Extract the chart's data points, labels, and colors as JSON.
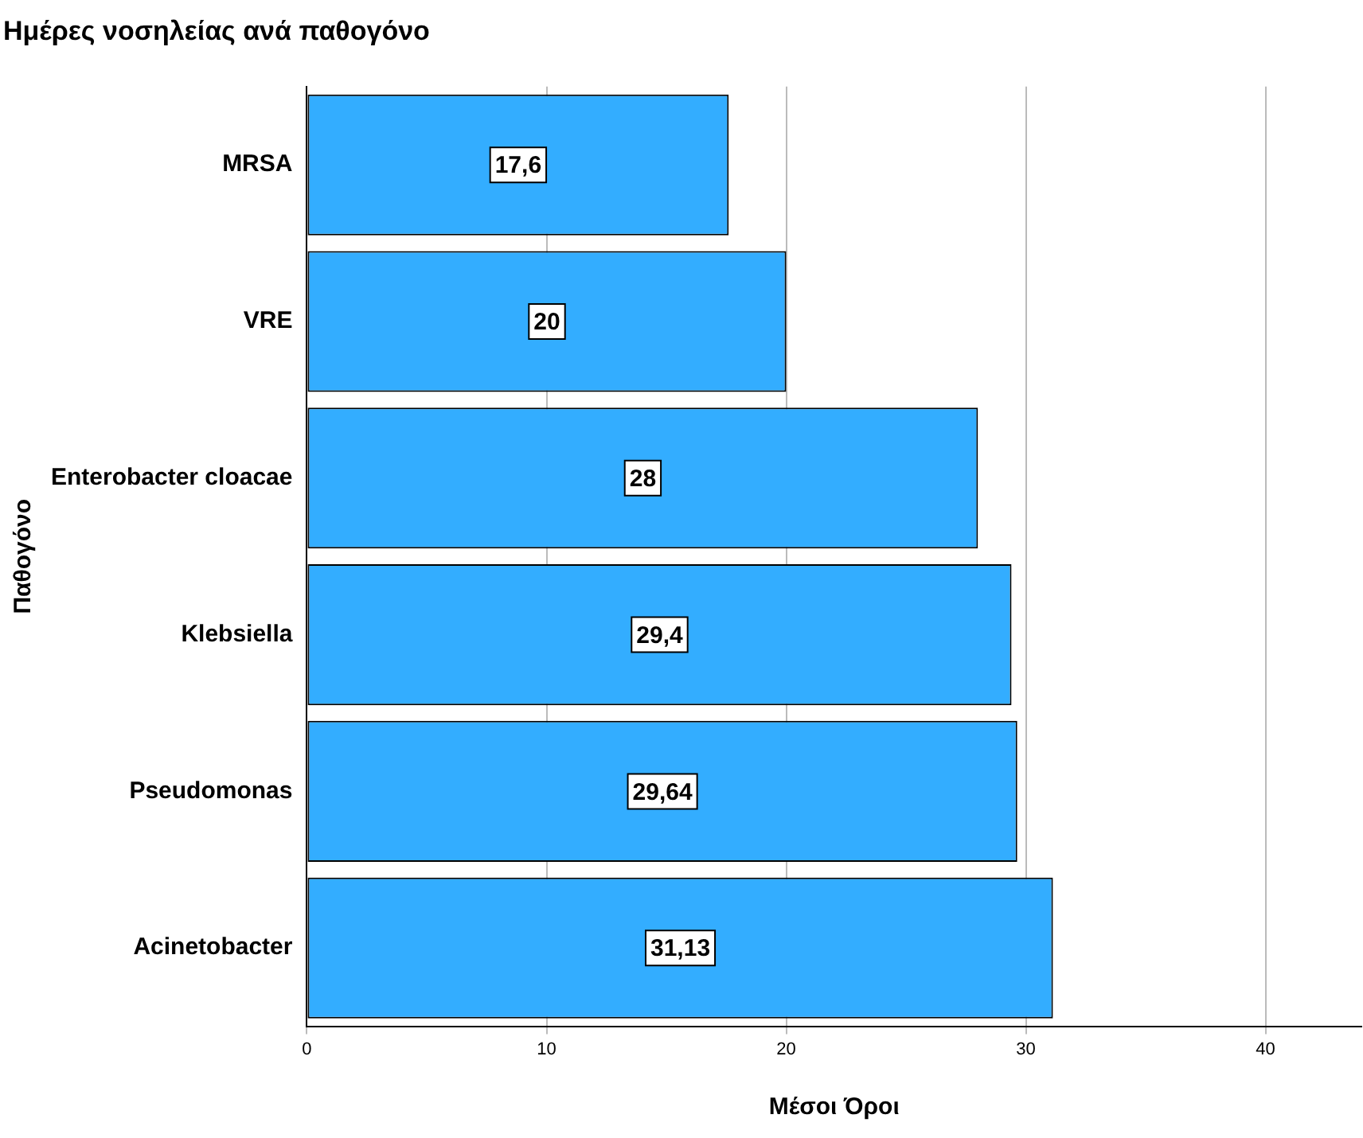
{
  "chart_data": {
    "type": "bar",
    "orientation": "horizontal",
    "title": "Ημέρες νοσηλείας ανά παθογόνο",
    "xlabel": "Μέσοι Όροι",
    "ylabel": "Παθογόνο",
    "categories": [
      "MRSA",
      "VRE",
      "Enterobacter cloacae",
      "Klebsiella",
      "Pseudomonas",
      "Acinetobacter"
    ],
    "values": [
      17.6,
      20,
      28,
      29.4,
      29.64,
      31.13
    ],
    "value_labels": [
      "17,6",
      "20",
      "28",
      "29,4",
      "29,64",
      "31,13"
    ],
    "color": "#33adff",
    "xlim": [
      0,
      44
    ],
    "xticks": [
      0,
      10,
      20,
      30,
      40
    ],
    "grid": "x",
    "legend": false
  }
}
